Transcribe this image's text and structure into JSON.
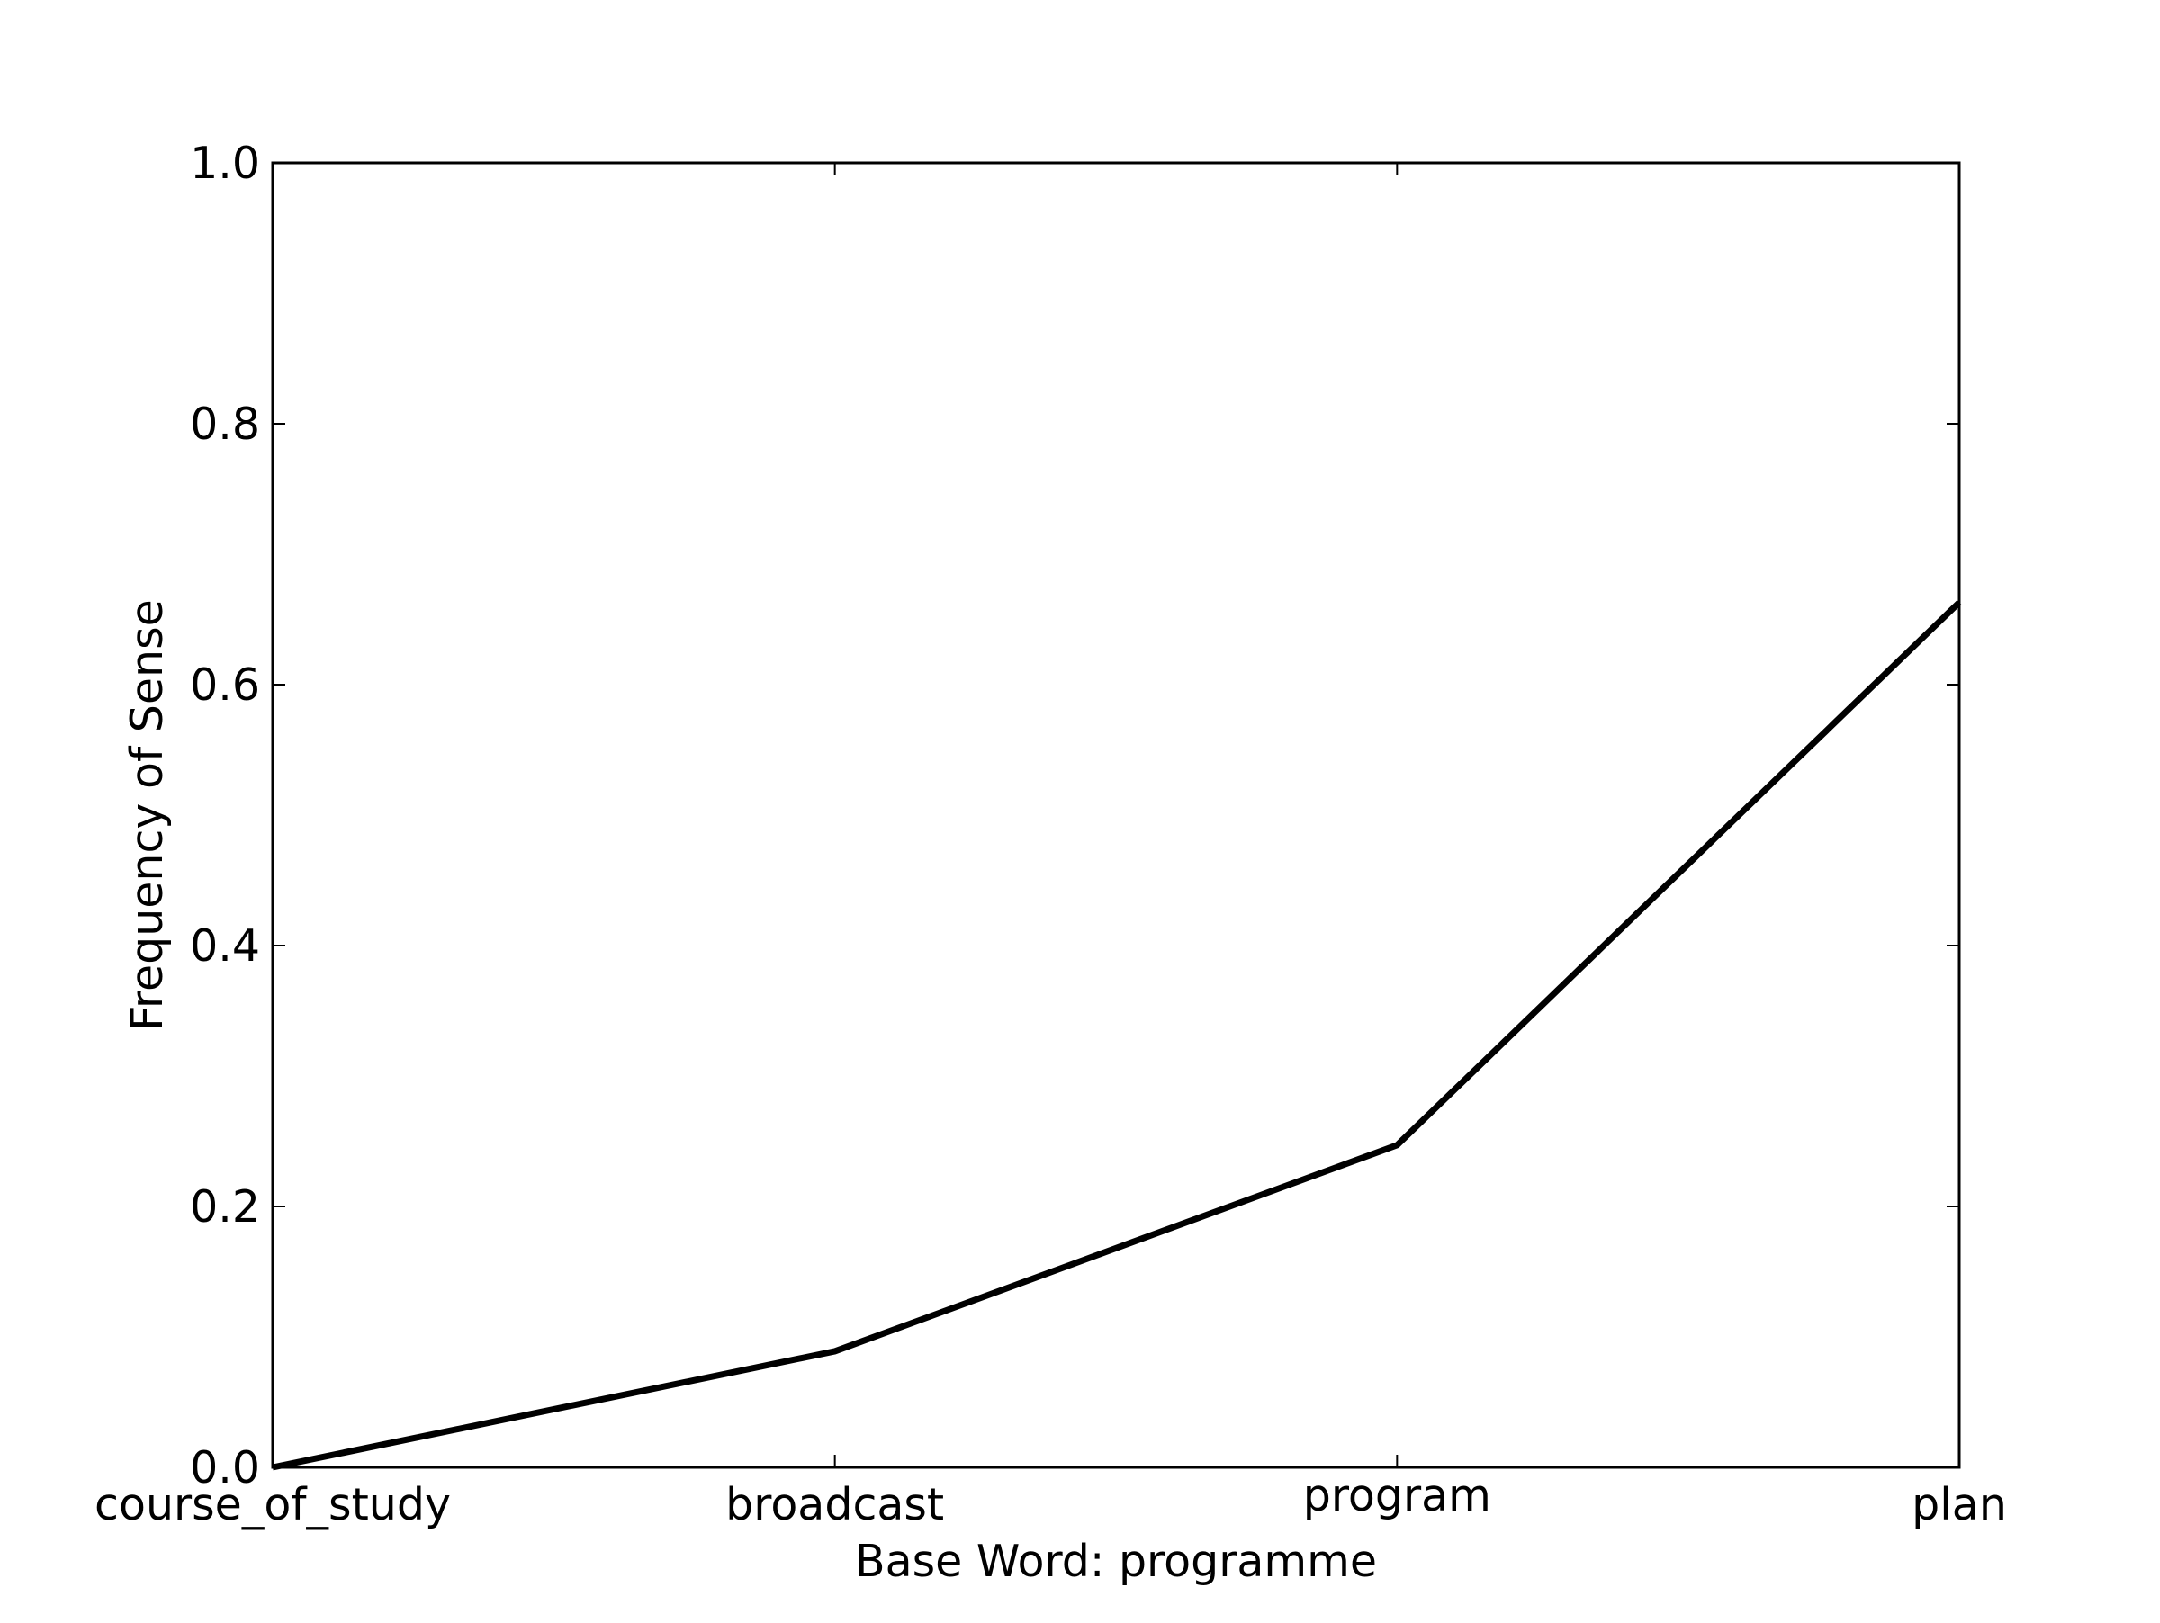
{
  "chart_data": {
    "type": "line",
    "title": "",
    "xlabel": "Base Word: programme",
    "ylabel": "Frequency of Sense",
    "categories": [
      "course_of_study",
      "broadcast",
      "program",
      "plan"
    ],
    "series": [
      {
        "values": [
          0.0,
          0.089,
          0.247,
          0.663
        ]
      }
    ],
    "ylim": [
      0,
      1
    ],
    "yticks": [
      "0.0",
      "0.2",
      "0.4",
      "0.6",
      "0.8",
      "1.0"
    ],
    "grid": false,
    "line_color": "#000000"
  }
}
